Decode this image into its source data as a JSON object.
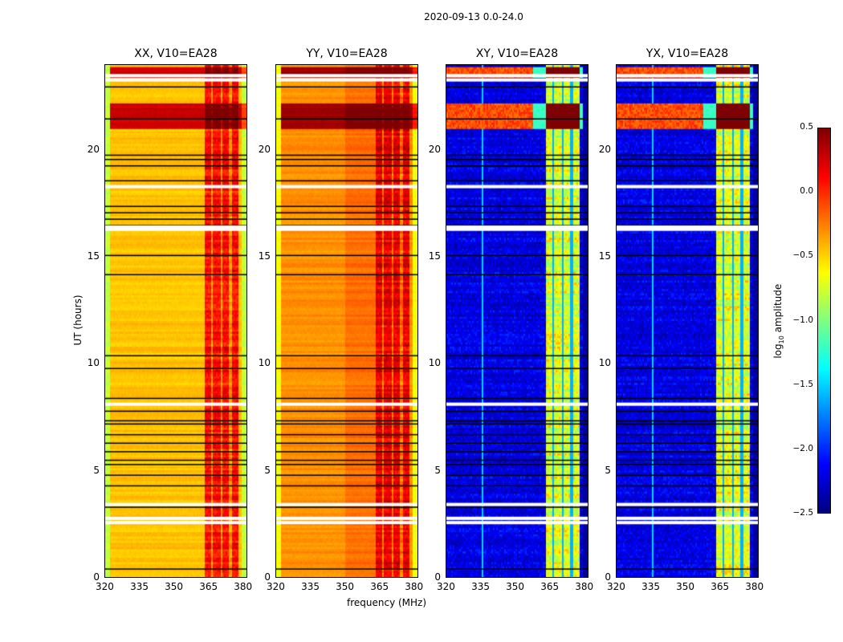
{
  "chart_data": {
    "type": "heatmap",
    "suptitle": "2020-09-13 0.0-24.0",
    "xlabel": "frequency (MHz)",
    "ylabel": "UT (hours)",
    "xlim": [
      320,
      382
    ],
    "ylim": [
      0,
      24
    ],
    "xticks": [
      "320",
      "335",
      "350",
      "365",
      "380"
    ],
    "xtick_values": [
      320,
      335,
      350,
      365,
      380
    ],
    "yticks": [
      "0",
      "5",
      "10",
      "15",
      "20"
    ],
    "ytick_values": [
      0,
      5,
      10,
      15,
      20
    ],
    "colormap": "jet",
    "colorbar": {
      "label": "log10 amplitude",
      "label_main": "log",
      "label_sub": "10",
      "label_rest": " amplitude",
      "range": [
        -2.5,
        0.5
      ],
      "ticks": [
        "0.5",
        "0.0",
        "−0.5",
        "−1.0",
        "−1.5",
        "−2.0",
        "−2.5"
      ],
      "tick_values": [
        0.5,
        0.0,
        -0.5,
        -1.0,
        -1.5,
        -2.0,
        -2.5
      ]
    },
    "panels": [
      {
        "title": "XX, V10=EA28",
        "pol": "XX",
        "base_level": -0.45,
        "rfi_level": 0.1,
        "kind": "parallel"
      },
      {
        "title": "YY, V10=EA28",
        "pol": "YY",
        "base_level": -0.3,
        "rfi_level": 0.2,
        "kind": "parallel"
      },
      {
        "title": "XY, V10=EA28",
        "pol": "XY",
        "base_level": -2.2,
        "rfi_level": -0.7,
        "kind": "cross"
      },
      {
        "title": "YX, V10=EA28",
        "pol": "YX",
        "base_level": -2.2,
        "rfi_level": -0.7,
        "kind": "cross"
      }
    ],
    "rfi_band_mhz": [
      363,
      378
    ],
    "flagged_hours_white": [
      2.55,
      2.75,
      3.4,
      8.1,
      16.3,
      16.4,
      18.3,
      23.3,
      23.5
    ],
    "flagged_hours_black": [
      0.4,
      3.3,
      4.3,
      4.8,
      5.3,
      5.5,
      5.9,
      6.3,
      6.7,
      7.2,
      7.35,
      7.8,
      8.4,
      9.8,
      10.4,
      14.2,
      15.1,
      16.5,
      16.8,
      17.1,
      17.4,
      18.6,
      19.3,
      19.6,
      19.8,
      21.5,
      23.0
    ]
  }
}
